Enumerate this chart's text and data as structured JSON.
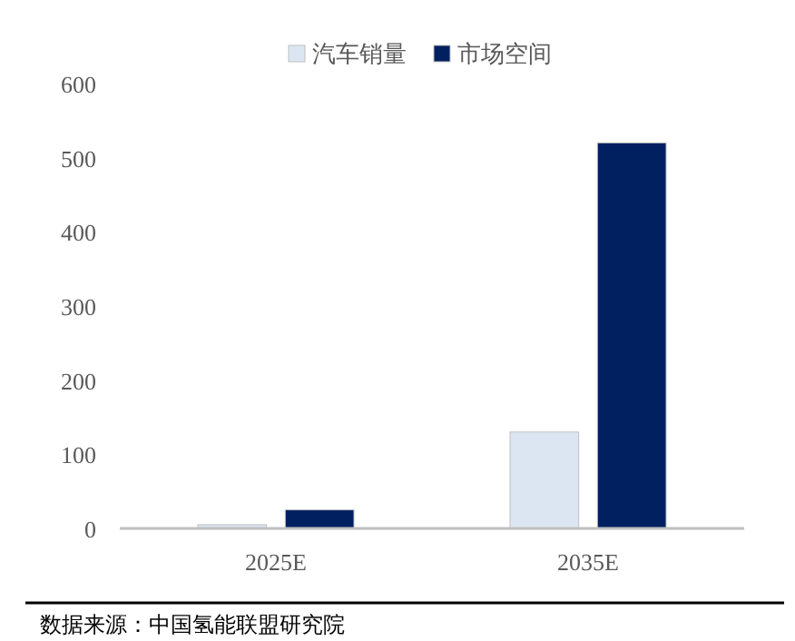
{
  "chart_data": {
    "type": "bar",
    "categories": [
      "2025E",
      "2035E"
    ],
    "series": [
      {
        "name": "汽车销量",
        "color": "#dce6f2",
        "values": [
          5,
          130
        ]
      },
      {
        "name": "市场空间",
        "color": "#002060",
        "values": [
          25,
          520
        ]
      }
    ],
    "ylim": [
      0,
      600
    ],
    "yticks": [
      0,
      100,
      200,
      300,
      400,
      500,
      600
    ],
    "grid": false,
    "legend": "top",
    "annotations": [
      "数据来源：中国氢能联盟研究院"
    ]
  }
}
